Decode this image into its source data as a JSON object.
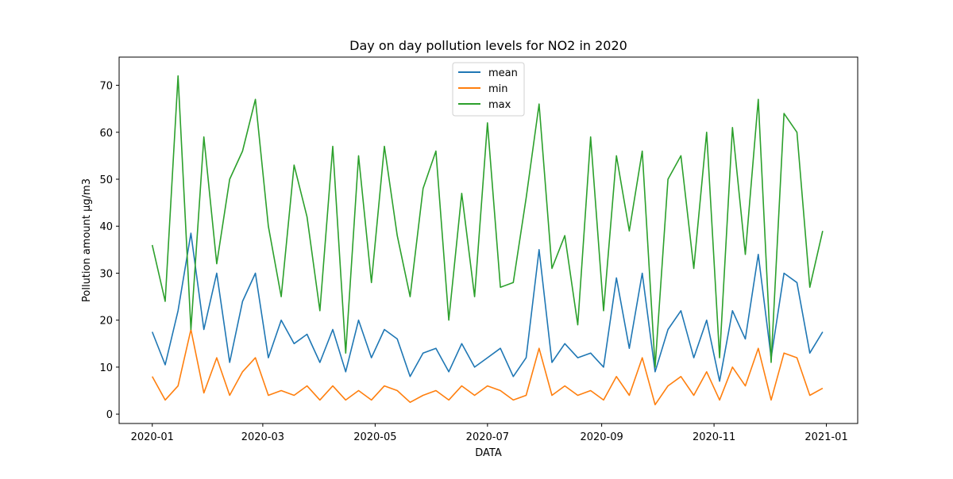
{
  "chart_data": {
    "type": "line",
    "title": "Day on day pollution levels for NO2 in 2020",
    "xlabel": "DATA",
    "ylabel": "Pollution amount µg/m3",
    "x_ticks": [
      "2020-01",
      "2020-03",
      "2020-05",
      "2020-07",
      "2020-09",
      "2020-11",
      "2021-01"
    ],
    "y_ticks": [
      0,
      10,
      20,
      30,
      40,
      50,
      60,
      70
    ],
    "ylim": [
      -2,
      76
    ],
    "xlim": [
      "2019-12-14",
      "2021-01-18"
    ],
    "x": [
      "2020-01-01",
      "2020-01-08",
      "2020-01-15",
      "2020-01-22",
      "2020-01-29",
      "2020-02-05",
      "2020-02-12",
      "2020-02-19",
      "2020-02-26",
      "2020-03-04",
      "2020-03-11",
      "2020-03-18",
      "2020-03-25",
      "2020-04-01",
      "2020-04-08",
      "2020-04-15",
      "2020-04-22",
      "2020-04-29",
      "2020-05-06",
      "2020-05-13",
      "2020-05-20",
      "2020-05-27",
      "2020-06-03",
      "2020-06-10",
      "2020-06-17",
      "2020-06-24",
      "2020-07-01",
      "2020-07-08",
      "2020-07-15",
      "2020-07-22",
      "2020-07-29",
      "2020-08-05",
      "2020-08-12",
      "2020-08-19",
      "2020-08-26",
      "2020-09-02",
      "2020-09-09",
      "2020-09-16",
      "2020-09-23",
      "2020-09-30",
      "2020-10-07",
      "2020-10-14",
      "2020-10-21",
      "2020-10-28",
      "2020-11-04",
      "2020-11-11",
      "2020-11-18",
      "2020-11-25",
      "2020-12-02",
      "2020-12-09",
      "2020-12-16",
      "2020-12-23",
      "2020-12-30"
    ],
    "series": [
      {
        "name": "mean",
        "color": "#1f77b4",
        "values": [
          17.5,
          10.5,
          22,
          38.5,
          18,
          30,
          11,
          24,
          30,
          12,
          20,
          15,
          17,
          11,
          18,
          9,
          20,
          12,
          18,
          16,
          8,
          13,
          14,
          9,
          15,
          10,
          12,
          14,
          8,
          12,
          35,
          11,
          15,
          12,
          13,
          10,
          29,
          14,
          30,
          9,
          18,
          22,
          12,
          20,
          7,
          22,
          16,
          34,
          12,
          30,
          28,
          13,
          17.5
        ]
      },
      {
        "name": "min",
        "color": "#ff7f0e",
        "values": [
          8,
          3,
          6,
          18,
          4.5,
          12,
          4,
          9,
          12,
          4,
          5,
          4,
          6,
          3,
          6,
          3,
          5,
          3,
          6,
          5,
          2.5,
          4,
          5,
          3,
          6,
          4,
          6,
          5,
          3,
          4,
          14,
          4,
          6,
          4,
          5,
          3,
          8,
          4,
          12,
          2,
          6,
          8,
          4,
          9,
          3,
          10,
          6,
          14,
          3,
          13,
          12,
          4,
          5.5
        ]
      },
      {
        "name": "max",
        "color": "#2ca02c",
        "values": [
          36,
          24,
          72,
          18,
          59,
          32,
          50,
          56,
          67,
          40,
          25,
          53,
          42,
          22,
          57,
          13,
          55,
          28,
          57,
          38,
          25,
          48,
          56,
          20,
          47,
          25,
          62,
          27,
          28,
          46,
          66,
          31,
          38,
          19,
          59,
          22,
          55,
          39,
          56,
          10,
          50,
          55,
          31,
          60,
          12,
          61,
          34,
          67,
          11,
          64,
          60,
          27,
          39
        ]
      }
    ],
    "legend": {
      "placement": "top-center",
      "entries": [
        "mean",
        "min",
        "max"
      ]
    },
    "grid": false
  }
}
